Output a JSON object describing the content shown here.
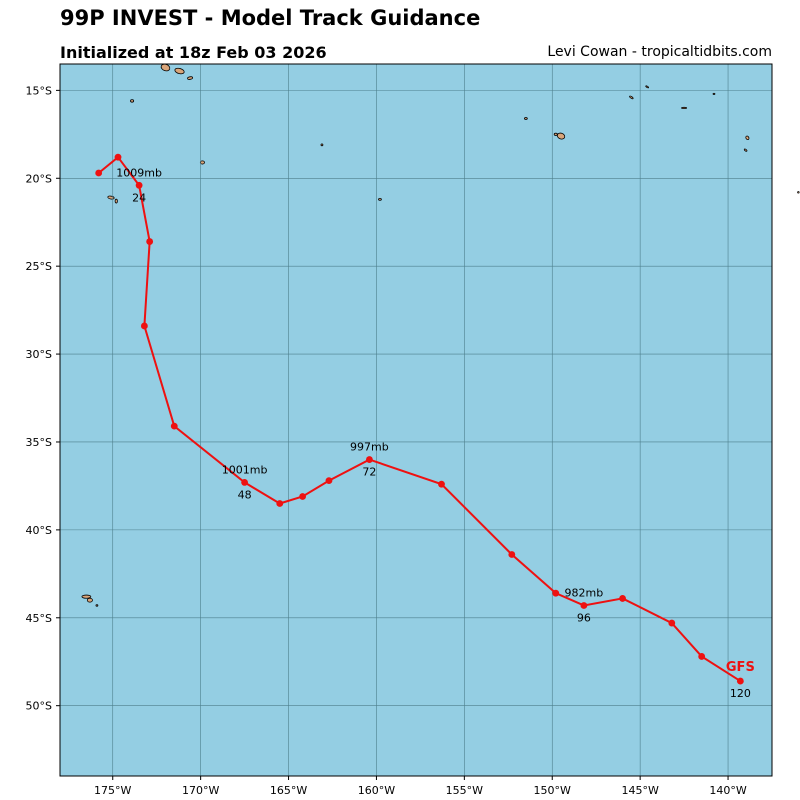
{
  "header": {
    "title": "99P INVEST - Model Track Guidance",
    "subtitle": "Initialized at 18z Feb 03 2026",
    "credit": "Levi Cowan - tropicaltidbits.com"
  },
  "colors": {
    "ocean": "#94cee3",
    "land": "#d9a57a",
    "grid": "#4d7f8c",
    "track": "#ee1111"
  },
  "chart_data": {
    "type": "map-track",
    "extent": {
      "lon": [
        -178,
        -137.5
      ],
      "lat": [
        -54,
        -13.5
      ]
    },
    "lon_ticks": [
      {
        "value": -175,
        "label": "175°W"
      },
      {
        "value": -170,
        "label": "170°W"
      },
      {
        "value": -165,
        "label": "165°W"
      },
      {
        "value": -160,
        "label": "160°W"
      },
      {
        "value": -155,
        "label": "155°W"
      },
      {
        "value": -150,
        "label": "150°W"
      },
      {
        "value": -145,
        "label": "145°W"
      },
      {
        "value": -140,
        "label": "140°W"
      }
    ],
    "lat_ticks": [
      {
        "value": -15,
        "label": "15°S"
      },
      {
        "value": -20,
        "label": "20°S"
      },
      {
        "value": -25,
        "label": "25°S"
      },
      {
        "value": -30,
        "label": "30°S"
      },
      {
        "value": -35,
        "label": "35°S"
      },
      {
        "value": -40,
        "label": "40°S"
      },
      {
        "value": -45,
        "label": "45°S"
      },
      {
        "value": -50,
        "label": "50°S"
      }
    ],
    "tracks": [
      {
        "model": "GFS",
        "points": [
          {
            "lon": -175.8,
            "lat": -19.7
          },
          {
            "lon": -174.7,
            "lat": -18.8
          },
          {
            "lon": -173.5,
            "lat": -20.4
          },
          {
            "lon": -172.9,
            "lat": -23.6
          },
          {
            "lon": -173.2,
            "lat": -28.4
          },
          {
            "lon": -171.5,
            "lat": -34.1
          },
          {
            "lon": -167.5,
            "lat": -37.3
          },
          {
            "lon": -165.5,
            "lat": -38.5
          },
          {
            "lon": -164.2,
            "lat": -38.1
          },
          {
            "lon": -162.7,
            "lat": -37.2
          },
          {
            "lon": -160.4,
            "lat": -36.0
          },
          {
            "lon": -156.3,
            "lat": -37.4
          },
          {
            "lon": -152.3,
            "lat": -41.4
          },
          {
            "lon": -149.8,
            "lat": -43.6
          },
          {
            "lon": -148.2,
            "lat": -44.3
          },
          {
            "lon": -146.0,
            "lat": -43.9
          },
          {
            "lon": -143.2,
            "lat": -45.3
          },
          {
            "lon": -141.5,
            "lat": -47.2
          },
          {
            "lon": -139.3,
            "lat": -48.6
          }
        ],
        "annotations": [
          {
            "point": 2,
            "pressure": "1009mb",
            "hour": "24"
          },
          {
            "point": 6,
            "pressure": "1001mb",
            "hour": "48"
          },
          {
            "point": 10,
            "pressure": "997mb",
            "hour": "72"
          },
          {
            "point": 14,
            "pressure": "982mb",
            "hour": "96"
          },
          {
            "point": 18,
            "pressure": "",
            "hour": "120"
          }
        ]
      }
    ]
  },
  "land": [
    {
      "name": "samoa-upolu",
      "lon": -172.0,
      "lat": -13.7,
      "rx": 2.8,
      "ry": 2.0,
      "rot": 20
    },
    {
      "name": "samoa-savaii",
      "lon": -171.2,
      "lat": -13.9,
      "rx": 3.0,
      "ry": 1.6,
      "rot": 15
    },
    {
      "name": "tutuila",
      "lon": -170.6,
      "lat": -14.3,
      "rx": 1.6,
      "ry": 0.8,
      "rot": -10
    },
    {
      "name": "niuafoou",
      "lon": -173.9,
      "lat": -15.6,
      "rx": 1.0,
      "ry": 0.8,
      "rot": 0
    },
    {
      "name": "niue",
      "lon": -169.9,
      "lat": -19.1,
      "rx": 1.3,
      "ry": 1.0,
      "rot": 0
    },
    {
      "name": "tonga-tongatapu",
      "lon": -175.1,
      "lat": -21.1,
      "rx": 2.0,
      "ry": 0.9,
      "rot": 10
    },
    {
      "name": "tonga-eua",
      "lon": -174.8,
      "lat": -21.3,
      "rx": 0.7,
      "ry": 1.2,
      "rot": 0
    },
    {
      "name": "palmerston",
      "lon": -163.1,
      "lat": -18.1,
      "rx": 0.6,
      "ry": 0.6,
      "rot": 0
    },
    {
      "name": "cook-rarotonga",
      "lon": -159.8,
      "lat": -21.2,
      "rx": 0.9,
      "ry": 0.6,
      "rot": 0
    },
    {
      "name": "society-tahiti",
      "lon": -149.5,
      "lat": -17.6,
      "rx": 2.4,
      "ry": 1.8,
      "rot": 20
    },
    {
      "name": "society-moorea",
      "lon": -149.8,
      "lat": -17.5,
      "rx": 1.0,
      "ry": 0.7,
      "rot": 0
    },
    {
      "name": "leeward-1",
      "lon": -151.5,
      "lat": -16.6,
      "rx": 0.9,
      "ry": 0.6,
      "rot": 0
    },
    {
      "name": "tuamotu-1",
      "lon": -145.5,
      "lat": -15.4,
      "rx": 1.3,
      "ry": 0.5,
      "rot": 35
    },
    {
      "name": "tuamotu-2",
      "lon": -144.6,
      "lat": -14.8,
      "rx": 1.0,
      "ry": 0.4,
      "rot": 30
    },
    {
      "name": "tuamotu-3",
      "lon": -142.5,
      "lat": -16.0,
      "rx": 1.6,
      "ry": 0.4,
      "rot": 0
    },
    {
      "name": "tuamotu-4",
      "lon": -140.8,
      "lat": -15.2,
      "rx": 0.6,
      "ry": 0.4,
      "rot": 0
    },
    {
      "name": "tuamotu-5",
      "lon": -138.9,
      "lat": -17.7,
      "rx": 1.2,
      "ry": 0.9,
      "rot": 60
    },
    {
      "name": "tuamotu-6",
      "lon": -139.0,
      "lat": -18.4,
      "rx": 1.0,
      "ry": 0.5,
      "rot": 40
    },
    {
      "name": "tuamotu-7",
      "lon": -136.0,
      "lat": -20.8,
      "rx": 0.5,
      "ry": 0.5,
      "rot": 0
    },
    {
      "name": "kermadec-1",
      "lon": -176.5,
      "lat": -43.8,
      "rx": 2.8,
      "ry": 1.0,
      "rot": 0
    },
    {
      "name": "kermadec-2",
      "lon": -176.3,
      "lat": -44.0,
      "rx": 1.6,
      "ry": 1.2,
      "rot": 0
    },
    {
      "name": "kermadec-3",
      "lon": -175.9,
      "lat": -44.3,
      "rx": 0.6,
      "ry": 0.5,
      "rot": 0
    }
  ]
}
